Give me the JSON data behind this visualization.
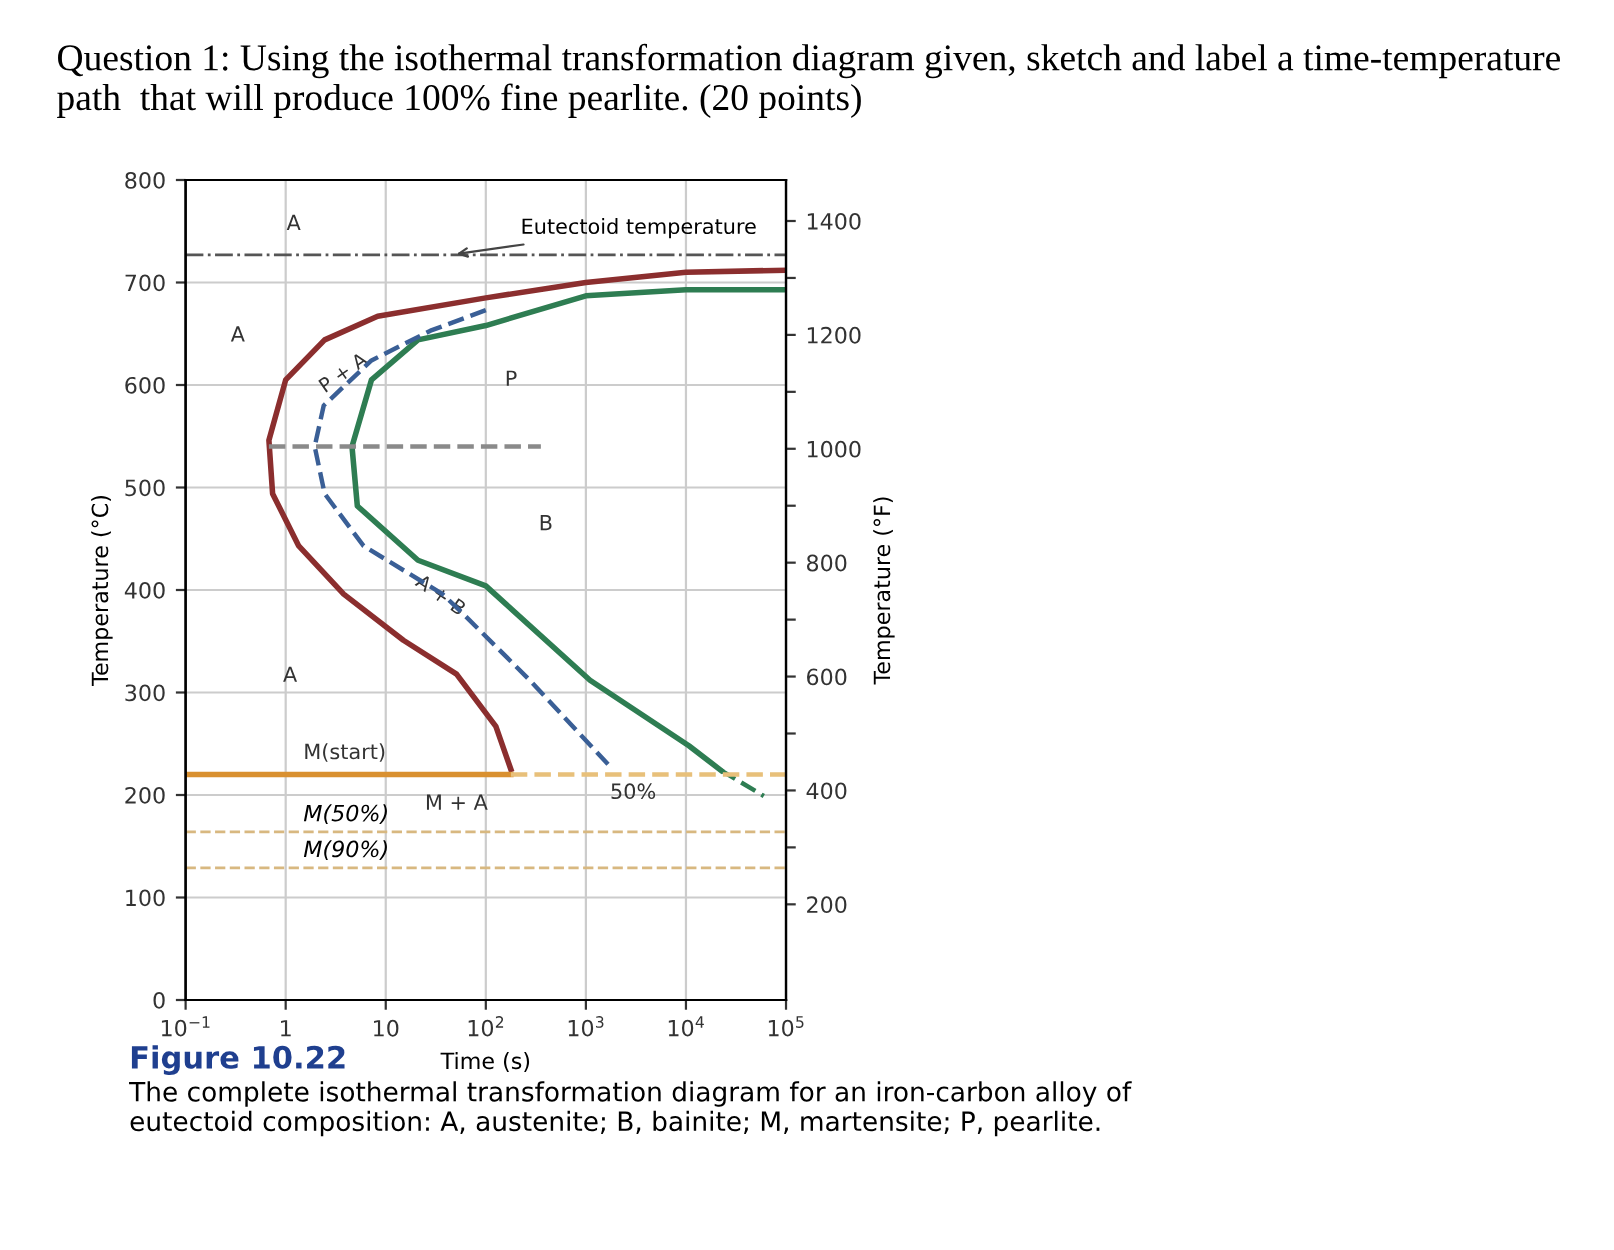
{
  "chart_data": {
    "type": "line",
    "title": "Question 1: Using the isothermal transformation diagram given, sketch and label a time-temperature path  that will produce 100% fine pearlite. (20 points)",
    "xlabel": "Time (s)",
    "ylabel": "Temperature (°C)",
    "y2label": "Temperature (°F)",
    "log": "x",
    "grid": true,
    "xlim": [
      0.1,
      100000
    ],
    "xticks": [
      {
        "value": 0.1,
        "label": "10$^{−1}$"
      },
      1,
      10,
      {
        "value": 100,
        "label": "10$^{2}$"
      },
      {
        "value": 1000,
        "label": "10$^{3}$"
      },
      {
        "value": 10000,
        "label": "10$^{4}$"
      },
      {
        "value": 100000,
        "label": "10$^{5}$"
      }
    ],
    "ylim": [
      0,
      800
    ],
    "yticks": [
      0,
      100,
      200,
      300,
      400,
      500,
      600,
      700,
      800
    ],
    "y2lim": [
      32,
      1472
    ],
    "y2ticks": [
      200,
      {
        "value": 300,
        "label": null
      },
      400,
      {
        "value": 500,
        "label": null
      },
      600,
      {
        "value": 700,
        "label": null
      },
      800,
      {
        "value": 900,
        "label": null
      },
      1000,
      {
        "value": 1100,
        "label": null
      },
      1200,
      {
        "value": 1300,
        "label": null
      },
      1400
    ],
    "series": [
      {
        "color": "#8b2e2e",
        "line_style": "solid",
        "x": [
          100000,
          10000,
          1000,
          100,
          8.3,
          2.45,
          1,
          0.68,
          0.74,
          1.35,
          3.8,
          15,
          51,
          126,
          178
        ],
        "values": [
          712,
          710,
          700,
          685,
          667,
          644,
          605,
          546,
          494,
          443,
          396,
          351,
          318,
          267,
          225
        ]
      },
      {
        "color": "#2e7d52",
        "line_style": "solid",
        "x": [
          100000,
          10000,
          1000,
          100,
          21,
          7.2,
          4.6,
          5.2,
          21,
          100,
          1100,
          10700,
          22400
        ],
        "values": [
          693,
          693,
          687,
          658,
          644,
          605,
          540,
          482,
          429,
          404,
          312,
          248,
          224
        ]
      },
      {
        "color": "#2e7d52",
        "line_style": "dashed",
        "x": [
          22400,
          60000
        ],
        "values": [
          224,
          199
        ]
      },
      {
        "color": "#3a5f96",
        "line_style": "dashed",
        "x": [
          100,
          28,
          7.2,
          2.4,
          1.95,
          2.45,
          6,
          37,
          59,
          275,
          1740
        ],
        "values": [
          673,
          653,
          624,
          580,
          540,
          494,
          443,
          396,
          377,
          312,
          228
        ]
      },
      {
        "color": "#d99030",
        "line_style": "solid",
        "x": [
          0.1,
          178
        ],
        "values": [
          220,
          220
        ]
      },
      {
        "color": "#e8c07a",
        "line_style": "dashed",
        "x": [
          178,
          100000
        ],
        "values": [
          220,
          220
        ]
      },
      {
        "color": "#8a8a8a",
        "line_style": "dashed",
        "x": [
          0.68,
          355
        ],
        "values": [
          540,
          540
        ]
      }
    ],
    "ref_lines": [
      {
        "axis": "y",
        "value": 727,
        "color": "#555555",
        "line_style": "dashdot"
      },
      {
        "axis": "y",
        "value": 164,
        "color": "#d8b880",
        "line_style": "dashed",
        "label": "M(50%)"
      },
      {
        "axis": "y",
        "value": 129,
        "color": "#d8b880",
        "line_style": "dashed",
        "label": "M(90%)"
      }
    ],
    "annotations": [
      {
        "text": "Eutectoid temperature",
        "x": 45,
        "y": 727
      },
      "A",
      "A",
      "A",
      "P",
      "B",
      "M + A",
      {
        "text": "50%",
        "x": 1740,
        "y": 228
      },
      {
        "text": "M(start)",
        "x": 1.5,
        "y": 220
      },
      {
        "text": "P + A",
        "x": 3.8,
        "y": 611
      },
      {
        "text": "A + B",
        "x": 35,
        "y": 394
      },
      "Figure 10.22",
      "The complete isothermal transformation diagram for an iron-carbon alloy of eutectoid composition: A, austenite; B, bainite; M, martensite; P, pearlite."
    ]
  }
}
